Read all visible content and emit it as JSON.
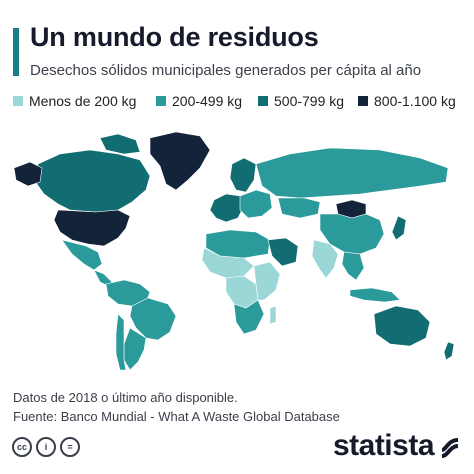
{
  "title": "Un mundo de residuos",
  "subtitle": "Desechos sólidos municipales generados per cápita al año",
  "legend": [
    {
      "label": "Menos de 200 kg",
      "color": "#9ad7d6"
    },
    {
      "label": "200-499 kg",
      "color": "#2a9a9b"
    },
    {
      "label": "500-799 kg",
      "color": "#126d72"
    },
    {
      "label": "800-1.100 kg",
      "color": "#13233a"
    }
  ],
  "map": {
    "no_data_color": "#d9dcdf",
    "regions": [
      {
        "name": "Groenlandia",
        "bucket": 3
      },
      {
        "name": "Canadá",
        "bucket": 2
      },
      {
        "name": "Estados Unidos",
        "bucket": 3
      },
      {
        "name": "México",
        "bucket": 1
      },
      {
        "name": "Centroamérica",
        "bucket": 1
      },
      {
        "name": "Sudamérica norte",
        "bucket": 1
      },
      {
        "name": "Brasil",
        "bucket": 1
      },
      {
        "name": "Argentina",
        "bucket": 1
      },
      {
        "name": "Chile",
        "bucket": 1
      },
      {
        "name": "Europa occidental",
        "bucket": 2
      },
      {
        "name": "Escandinavia",
        "bucket": 2
      },
      {
        "name": "Europa oriental",
        "bucket": 1
      },
      {
        "name": "Rusia",
        "bucket": 1
      },
      {
        "name": "Kazajistán",
        "bucket": 1
      },
      {
        "name": "Mongolia",
        "bucket": 3
      },
      {
        "name": "China",
        "bucket": 1
      },
      {
        "name": "India",
        "bucket": 0
      },
      {
        "name": "Sudeste asiático",
        "bucket": 1
      },
      {
        "name": "Japón",
        "bucket": 2
      },
      {
        "name": "Indonesia",
        "bucket": 1
      },
      {
        "name": "Norte de África",
        "bucket": 1
      },
      {
        "name": "Sahel",
        "bucket": 0
      },
      {
        "name": "África central",
        "bucket": 0
      },
      {
        "name": "África oriental",
        "bucket": 0
      },
      {
        "name": "Sudáfrica",
        "bucket": 1
      },
      {
        "name": "Arabia Saudí",
        "bucket": 2
      },
      {
        "name": "Australia",
        "bucket": 2
      },
      {
        "name": "Nueva Zelanda",
        "bucket": 2
      }
    ]
  },
  "notes": {
    "line1": "Datos de 2018 o último año disponible.",
    "line2": "Fuente: Banco Mundial - What A Waste Global Database"
  },
  "footer": {
    "icon_cc": "cc",
    "icon_by": "i",
    "icon_nd": "=",
    "brand": "statista"
  }
}
